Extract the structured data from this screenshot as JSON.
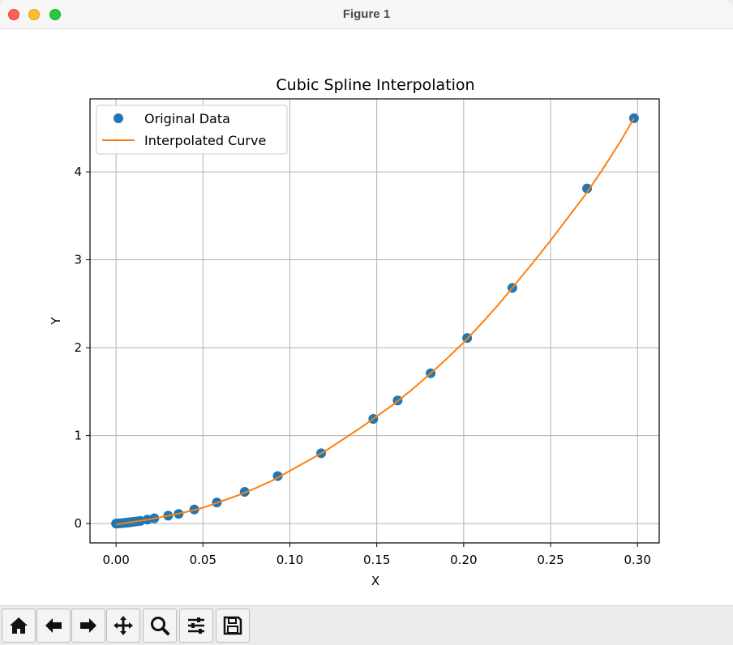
{
  "window": {
    "title": "Figure 1"
  },
  "toolbar": {
    "buttons": [
      {
        "name": "home-button",
        "icon": "home-icon"
      },
      {
        "name": "back-button",
        "icon": "arrow-left-icon"
      },
      {
        "name": "forward-button",
        "icon": "arrow-right-icon"
      },
      {
        "name": "pan-button",
        "icon": "move-icon"
      },
      {
        "name": "zoom-button",
        "icon": "magnifier-icon"
      },
      {
        "name": "configure-subplots-button",
        "icon": "sliders-icon"
      },
      {
        "name": "save-button",
        "icon": "floppy-disk-icon"
      }
    ]
  },
  "chart_data": {
    "type": "scatter",
    "title": "Cubic Spline Interpolation",
    "xlabel": "X",
    "ylabel": "Y",
    "xlim": [
      -0.015,
      0.3125
    ],
    "ylim": [
      -0.22,
      4.83
    ],
    "grid": true,
    "legend_position": "upper-left",
    "x_ticks": [
      0.0,
      0.05,
      0.1,
      0.15,
      0.2,
      0.25,
      0.3
    ],
    "x_tick_labels": [
      "0.00",
      "0.05",
      "0.10",
      "0.15",
      "0.20",
      "0.25",
      "0.30"
    ],
    "y_ticks": [
      0,
      1,
      2,
      3,
      4
    ],
    "y_tick_labels": [
      "0",
      "1",
      "2",
      "3",
      "4"
    ],
    "series": [
      {
        "name": "Original Data",
        "kind": "markers",
        "color": "#1f77b4",
        "x": [
          0.0,
          0.001,
          0.002,
          0.003,
          0.004,
          0.005,
          0.006,
          0.007,
          0.008,
          0.009,
          0.01,
          0.012,
          0.014,
          0.018,
          0.022,
          0.03,
          0.036,
          0.045,
          0.058,
          0.074,
          0.093,
          0.118,
          0.148,
          0.162,
          0.181,
          0.202,
          0.228,
          0.271,
          0.298
        ],
        "y": [
          0.0,
          0.001,
          0.002,
          0.004,
          0.006,
          0.008,
          0.01,
          0.012,
          0.014,
          0.017,
          0.02,
          0.025,
          0.03,
          0.045,
          0.06,
          0.09,
          0.11,
          0.16,
          0.24,
          0.36,
          0.54,
          0.8,
          1.19,
          1.4,
          1.71,
          2.11,
          2.68,
          3.81,
          4.61
        ]
      },
      {
        "name": "Interpolated Curve",
        "kind": "line",
        "color": "#ff7f0e",
        "x": [
          0.0,
          0.01,
          0.02,
          0.03,
          0.04,
          0.05,
          0.06,
          0.07,
          0.08,
          0.09,
          0.1,
          0.11,
          0.12,
          0.13,
          0.14,
          0.15,
          0.16,
          0.17,
          0.18,
          0.19,
          0.2,
          0.21,
          0.22,
          0.23,
          0.24,
          0.25,
          0.26,
          0.27,
          0.28,
          0.29,
          0.298
        ],
        "y": [
          -0.01,
          0.02,
          0.05,
          0.09,
          0.13,
          0.18,
          0.25,
          0.32,
          0.4,
          0.49,
          0.6,
          0.71,
          0.82,
          0.95,
          1.08,
          1.22,
          1.36,
          1.52,
          1.69,
          1.87,
          2.06,
          2.27,
          2.49,
          2.73,
          2.97,
          3.22,
          3.48,
          3.74,
          4.03,
          4.34,
          4.61
        ]
      }
    ]
  }
}
